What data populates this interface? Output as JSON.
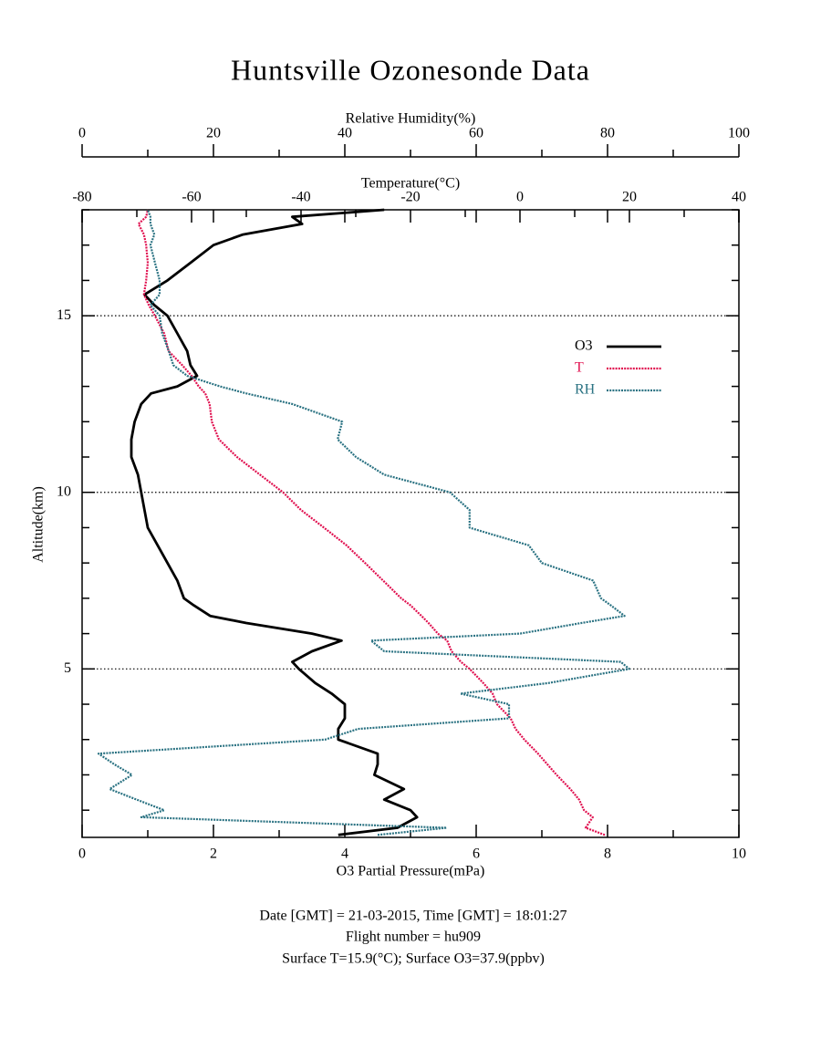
{
  "chart_data": {
    "type": "profile",
    "title": "Huntsville Ozonesonde Data",
    "xlabel": "O3 Partial Pressure(mPa)",
    "x2label": "Temperature(°C)",
    "x3label": "Relative Humidity(%)",
    "ylabel": "Altitude(km)",
    "xlim": [
      0,
      10
    ],
    "xticks": [
      0,
      2,
      4,
      6,
      8,
      10
    ],
    "xminorticks": [
      1,
      3,
      5,
      7,
      9
    ],
    "x2lim": [
      -80,
      40
    ],
    "x2ticks": [
      -80,
      -60,
      -40,
      -20,
      0,
      20,
      40
    ],
    "x2minorticks": [
      -70,
      -50,
      -30,
      -10,
      10,
      30
    ],
    "x3lim": [
      0,
      100
    ],
    "x3ticks": [
      0,
      20,
      40,
      60,
      80,
      100
    ],
    "x3minorticks": [
      10,
      30,
      50,
      70,
      90
    ],
    "ylim": [
      0.23,
      18
    ],
    "yticks": [
      5,
      10,
      15
    ],
    "yminorticks": [
      1,
      2,
      3,
      4,
      6,
      7,
      8,
      9,
      11,
      12,
      13,
      14,
      16,
      17,
      18
    ],
    "grid": true,
    "legend": "right",
    "altitude": [
      0.3,
      0.5,
      0.8,
      1.0,
      1.3,
      1.6,
      2.0,
      2.3,
      2.6,
      3.0,
      3.3,
      3.6,
      4.0,
      4.3,
      4.6,
      5.0,
      5.2,
      5.5,
      5.8,
      6.0,
      6.3,
      6.5,
      6.8,
      7.0,
      7.5,
      8.0,
      8.5,
      9.0,
      9.5,
      10,
      10.5,
      11,
      11.5,
      12,
      12.5,
      12.8,
      13,
      13.3,
      13.6,
      14,
      14.5,
      15,
      15.3,
      15.6,
      16,
      16.5,
      17,
      17.3,
      17.6,
      17.8,
      18
    ],
    "series": [
      {
        "name": "O3",
        "color": "#000000",
        "axis": "x",
        "values": [
          3.9,
          4.8,
          5.1,
          5.0,
          4.6,
          4.9,
          4.45,
          4.5,
          4.5,
          3.9,
          3.9,
          4.0,
          4.0,
          3.8,
          3.55,
          3.3,
          3.2,
          3.5,
          3.95,
          3.5,
          2.5,
          1.95,
          1.7,
          1.55,
          1.45,
          1.3,
          1.15,
          1.0,
          0.95,
          0.9,
          0.85,
          0.75,
          0.75,
          0.8,
          0.9,
          1.05,
          1.45,
          1.75,
          1.65,
          1.6,
          1.45,
          1.3,
          1.1,
          0.95,
          1.3,
          1.65,
          2.0,
          2.45,
          3.35,
          3.2,
          4.6
        ]
      },
      {
        "name": "T",
        "color": "#e0104f",
        "axis": "x2",
        "values": [
          15.5,
          12,
          13.3,
          11.7,
          10.8,
          9.2,
          6.7,
          5,
          3.3,
          0.8,
          -0.8,
          -1.7,
          -4.2,
          -5,
          -6.7,
          -9.2,
          -10.8,
          -12.5,
          -13.3,
          -15,
          -16.7,
          -18,
          -20,
          -21.7,
          -25,
          -28.3,
          -31.7,
          -35.8,
          -40,
          -43.3,
          -47.5,
          -51.7,
          -55,
          -56.3,
          -56.7,
          -57.5,
          -58.7,
          -60,
          -61.7,
          -64.2,
          -65,
          -66.7,
          -67.8,
          -68.7,
          -68.3,
          -68,
          -68.3,
          -68.7,
          -69.7,
          -68.3,
          -68
        ]
      },
      {
        "name": "RH",
        "color": "#2a7282",
        "axis": "x3",
        "values": [
          45,
          55.5,
          9,
          12.5,
          8.3,
          4.2,
          7.6,
          4.9,
          2.5,
          37,
          42,
          65,
          65,
          57.6,
          71,
          83.3,
          82,
          46,
          44,
          66.7,
          76,
          82.6,
          80.5,
          79,
          77.8,
          70,
          68,
          59,
          59,
          56,
          46,
          41.7,
          38.9,
          39.6,
          32,
          25,
          21,
          16,
          13.9,
          13.2,
          12.2,
          11.8,
          10.4,
          11.8,
          11.8,
          11.1,
          10.4,
          11,
          10.4,
          10.4,
          10
        ]
      }
    ],
    "footer": [
      "Date [GMT] = 21-03-2015,  Time [GMT] = 18:01:27",
      "Flight number = hu909",
      "Surface T=15.9(°C); Surface O3=37.9(ppbv)"
    ]
  }
}
